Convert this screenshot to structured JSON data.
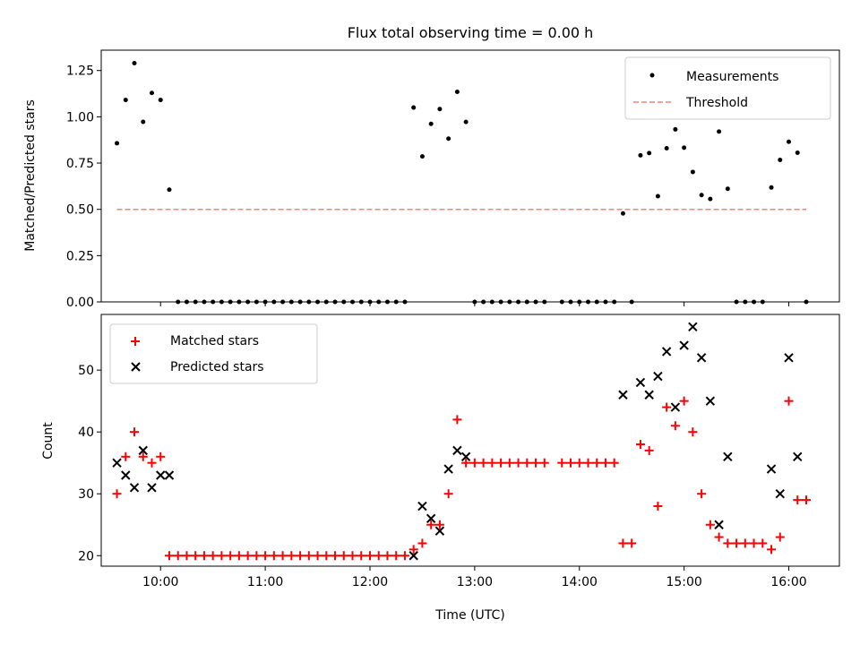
{
  "chart_data": [
    {
      "panel": "top",
      "type": "scatter",
      "title": "Flux total observing time = 0.00 h",
      "xlabel": "",
      "ylabel": "Matched/Predicted stars",
      "ylim": [
        0,
        1.36
      ],
      "yticks": [
        0.0,
        0.25,
        0.5,
        0.75,
        1.0,
        1.25
      ],
      "ytick_labels": [
        "0.00",
        "0.25",
        "0.50",
        "0.75",
        "1.00",
        "1.25"
      ],
      "xticks": [
        "10:00",
        "11:00",
        "12:00",
        "13:00",
        "14:00",
        "15:00",
        "16:00"
      ],
      "xtick_labels_visible": false,
      "legend": {
        "placement": "top-right",
        "entries": [
          {
            "label": "Measurements",
            "marker": "dot",
            "color": "#000000"
          },
          {
            "label": "Threshold",
            "marker": "dashed-line",
            "color": "#ff7f7f"
          }
        ]
      },
      "series": [
        {
          "name": "Measurements",
          "field": "ratio",
          "color": "#000000",
          "marker": "dot"
        },
        {
          "name": "Threshold",
          "type": "line",
          "value": 0.5,
          "x_range": [
            "09:35",
            "16:10"
          ],
          "color": "#ff7f7f",
          "dash": "dashed"
        }
      ]
    },
    {
      "panel": "bottom",
      "type": "scatter",
      "title": "",
      "xlabel": "Time (UTC)",
      "ylabel": "Count",
      "ylim": [
        18.3,
        59.0
      ],
      "yticks": [
        20,
        30,
        40,
        50
      ],
      "ytick_labels": [
        "20",
        "30",
        "40",
        "50"
      ],
      "xticks": [
        "10:00",
        "11:00",
        "12:00",
        "13:00",
        "14:00",
        "15:00",
        "16:00"
      ],
      "xtick_labels_visible": true,
      "legend": {
        "placement": "top-left",
        "entries": [
          {
            "label": "Matched stars",
            "marker": "plus",
            "color": "#ff0000"
          },
          {
            "label": "Predicted stars",
            "marker": "x",
            "color": "#000000"
          }
        ]
      },
      "series": [
        {
          "name": "Matched stars",
          "field": "matched",
          "color": "#ff0000",
          "marker": "plus"
        },
        {
          "name": "Predicted stars",
          "field": "predicted",
          "color": "#000000",
          "marker": "x"
        }
      ]
    }
  ],
  "xlim": [
    "09:26",
    "16:29"
  ],
  "points_columns": [
    "time",
    "matched",
    "predicted",
    "ratio"
  ],
  "points": [
    [
      "09:35",
      30,
      35,
      0.857
    ],
    [
      "09:40",
      36,
      33,
      1.091
    ],
    [
      "09:45",
      40,
      31,
      1.29
    ],
    [
      "09:50",
      36,
      37,
      0.973
    ],
    [
      "09:55",
      35,
      31,
      1.129
    ],
    [
      "10:00",
      36,
      33,
      1.091
    ],
    [
      "10:05",
      20,
      33,
      0.606
    ],
    [
      "10:10",
      20,
      null,
      0
    ],
    [
      "10:15",
      20,
      null,
      0
    ],
    [
      "10:20",
      20,
      null,
      0
    ],
    [
      "10:25",
      20,
      null,
      0
    ],
    [
      "10:30",
      20,
      null,
      0
    ],
    [
      "10:35",
      20,
      null,
      0
    ],
    [
      "10:40",
      20,
      null,
      0
    ],
    [
      "10:45",
      20,
      null,
      0
    ],
    [
      "10:50",
      20,
      null,
      0
    ],
    [
      "10:55",
      20,
      null,
      0
    ],
    [
      "11:00",
      20,
      null,
      0
    ],
    [
      "11:05",
      20,
      null,
      0
    ],
    [
      "11:10",
      20,
      null,
      0
    ],
    [
      "11:15",
      20,
      null,
      0
    ],
    [
      "11:20",
      20,
      null,
      0
    ],
    [
      "11:25",
      20,
      null,
      0
    ],
    [
      "11:30",
      20,
      null,
      0
    ],
    [
      "11:35",
      20,
      null,
      0
    ],
    [
      "11:40",
      20,
      null,
      0
    ],
    [
      "11:45",
      20,
      null,
      0
    ],
    [
      "11:50",
      20,
      null,
      0
    ],
    [
      "11:55",
      20,
      null,
      0
    ],
    [
      "12:00",
      20,
      null,
      0
    ],
    [
      "12:05",
      20,
      null,
      0
    ],
    [
      "12:10",
      20,
      null,
      0
    ],
    [
      "12:15",
      20,
      null,
      0
    ],
    [
      "12:20",
      20,
      null,
      0
    ],
    [
      "12:25",
      21,
      20,
      1.05
    ],
    [
      "12:30",
      22,
      28,
      0.786
    ],
    [
      "12:35",
      25,
      26,
      0.962
    ],
    [
      "12:40",
      25,
      24,
      1.042
    ],
    [
      "12:45",
      30,
      34,
      0.882
    ],
    [
      "12:50",
      42,
      37,
      1.135
    ],
    [
      "12:55",
      35,
      36,
      0.972
    ],
    [
      "13:00",
      35,
      null,
      0
    ],
    [
      "13:05",
      35,
      null,
      0
    ],
    [
      "13:10",
      35,
      null,
      0
    ],
    [
      "13:15",
      35,
      null,
      0
    ],
    [
      "13:20",
      35,
      null,
      0
    ],
    [
      "13:25",
      35,
      null,
      0
    ],
    [
      "13:30",
      35,
      null,
      0
    ],
    [
      "13:35",
      35,
      null,
      0
    ],
    [
      "13:40",
      35,
      null,
      0
    ],
    [
      "13:50",
      35,
      null,
      0
    ],
    [
      "13:55",
      35,
      null,
      0
    ],
    [
      "14:00",
      35,
      null,
      0
    ],
    [
      "14:05",
      35,
      null,
      0
    ],
    [
      "14:10",
      35,
      null,
      0
    ],
    [
      "14:15",
      35,
      null,
      0
    ],
    [
      "14:20",
      35,
      null,
      0
    ],
    [
      "14:25",
      22,
      46,
      0.478
    ],
    [
      "14:30",
      22,
      null,
      0
    ],
    [
      "14:35",
      38,
      48,
      0.792
    ],
    [
      "14:40",
      37,
      46,
      0.804
    ],
    [
      "14:45",
      28,
      49,
      0.571
    ],
    [
      "14:50",
      44,
      53,
      0.83
    ],
    [
      "14:55",
      41,
      44,
      0.932
    ],
    [
      "15:00",
      45,
      54,
      0.833
    ],
    [
      "15:05",
      40,
      57,
      0.702
    ],
    [
      "15:10",
      30,
      52,
      0.577
    ],
    [
      "15:15",
      25,
      45,
      0.556
    ],
    [
      "15:20",
      23,
      25,
      0.92
    ],
    [
      "15:25",
      22,
      36,
      0.611
    ],
    [
      "15:30",
      22,
      null,
      0
    ],
    [
      "15:35",
      22,
      null,
      0
    ],
    [
      "15:40",
      22,
      null,
      0
    ],
    [
      "15:45",
      22,
      null,
      0
    ],
    [
      "15:50",
      21,
      34,
      0.618
    ],
    [
      "15:55",
      23,
      30,
      0.767
    ],
    [
      "16:00",
      45,
      52,
      0.865
    ],
    [
      "16:05",
      29,
      36,
      0.806
    ],
    [
      "16:10",
      29,
      null,
      0
    ]
  ]
}
